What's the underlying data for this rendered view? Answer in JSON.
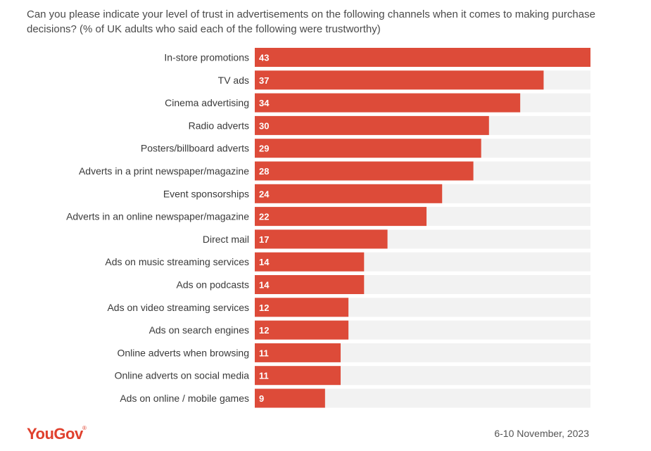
{
  "chart_data": {
    "type": "bar",
    "orientation": "horizontal",
    "title": "Can you please indicate your level of trust in advertisements on the following channels when it comes to making purchase decisions? (% of UK adults who said each of the following were trustworthy)",
    "categories": [
      "In-store promotions",
      "TV ads",
      "Cinema advertising",
      "Radio adverts",
      "Posters/billboard adverts",
      "Adverts in a print newspaper/magazine",
      "Event sponsorships",
      "Adverts in an online newspaper/magazine",
      "Direct mail",
      "Ads on music streaming services",
      "Ads on podcasts",
      "Ads on video streaming services",
      "Ads on search engines",
      "Online adverts when browsing",
      "Online adverts on social media",
      "Ads on online / mobile games"
    ],
    "values": [
      43,
      37,
      34,
      30,
      29,
      28,
      24,
      22,
      17,
      14,
      14,
      12,
      12,
      11,
      11,
      9
    ],
    "xlim": [
      0,
      43
    ],
    "grid": false,
    "legend": "none",
    "colors": {
      "bar": "#dd4b39",
      "track": "#f2f2f2"
    }
  },
  "footer": {
    "logo": "YouGov",
    "date": "6-10 November, 2023"
  }
}
